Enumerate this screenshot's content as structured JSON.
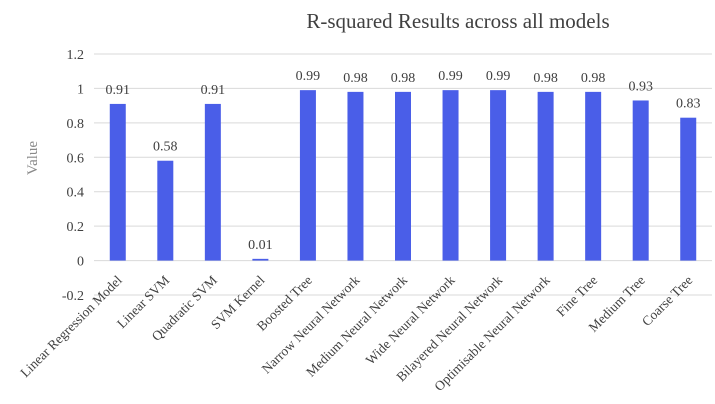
{
  "chart_data": {
    "type": "bar",
    "title": "R-squared Results across all models",
    "ylabel": "Value",
    "xlabel": "",
    "ylim": [
      -0.2,
      1.2
    ],
    "ytick_step": 0.2,
    "yticks": [
      "-0.2",
      "0",
      "0.2",
      "0.4",
      "0.6",
      "0.8",
      "1",
      "1.2"
    ],
    "grid": true,
    "legend": "none",
    "bar_color": "#4a5ee8",
    "categories": [
      "Linear Regression Model",
      "Linear SVM",
      "Quadratic SVM",
      "SVM Kernel",
      "Boosted Tree",
      "Narrow Neural Network",
      "Medium Neural Network",
      "Wide Neural Network",
      "Bilayered Neural Network",
      "Optimisable Neural Network",
      "Fine Tree",
      "Medium Tree",
      "Coarse Tree"
    ],
    "values": [
      0.91,
      0.58,
      0.91,
      0.01,
      0.99,
      0.98,
      0.98,
      0.99,
      0.99,
      0.98,
      0.98,
      0.93,
      0.83
    ],
    "data_labels": [
      "0.91",
      "0.58",
      "0.91",
      "0.01",
      "0.99",
      "0.98",
      "0.98",
      "0.99",
      "0.99",
      "0.98",
      "0.98",
      "0.93",
      "0.83"
    ]
  }
}
